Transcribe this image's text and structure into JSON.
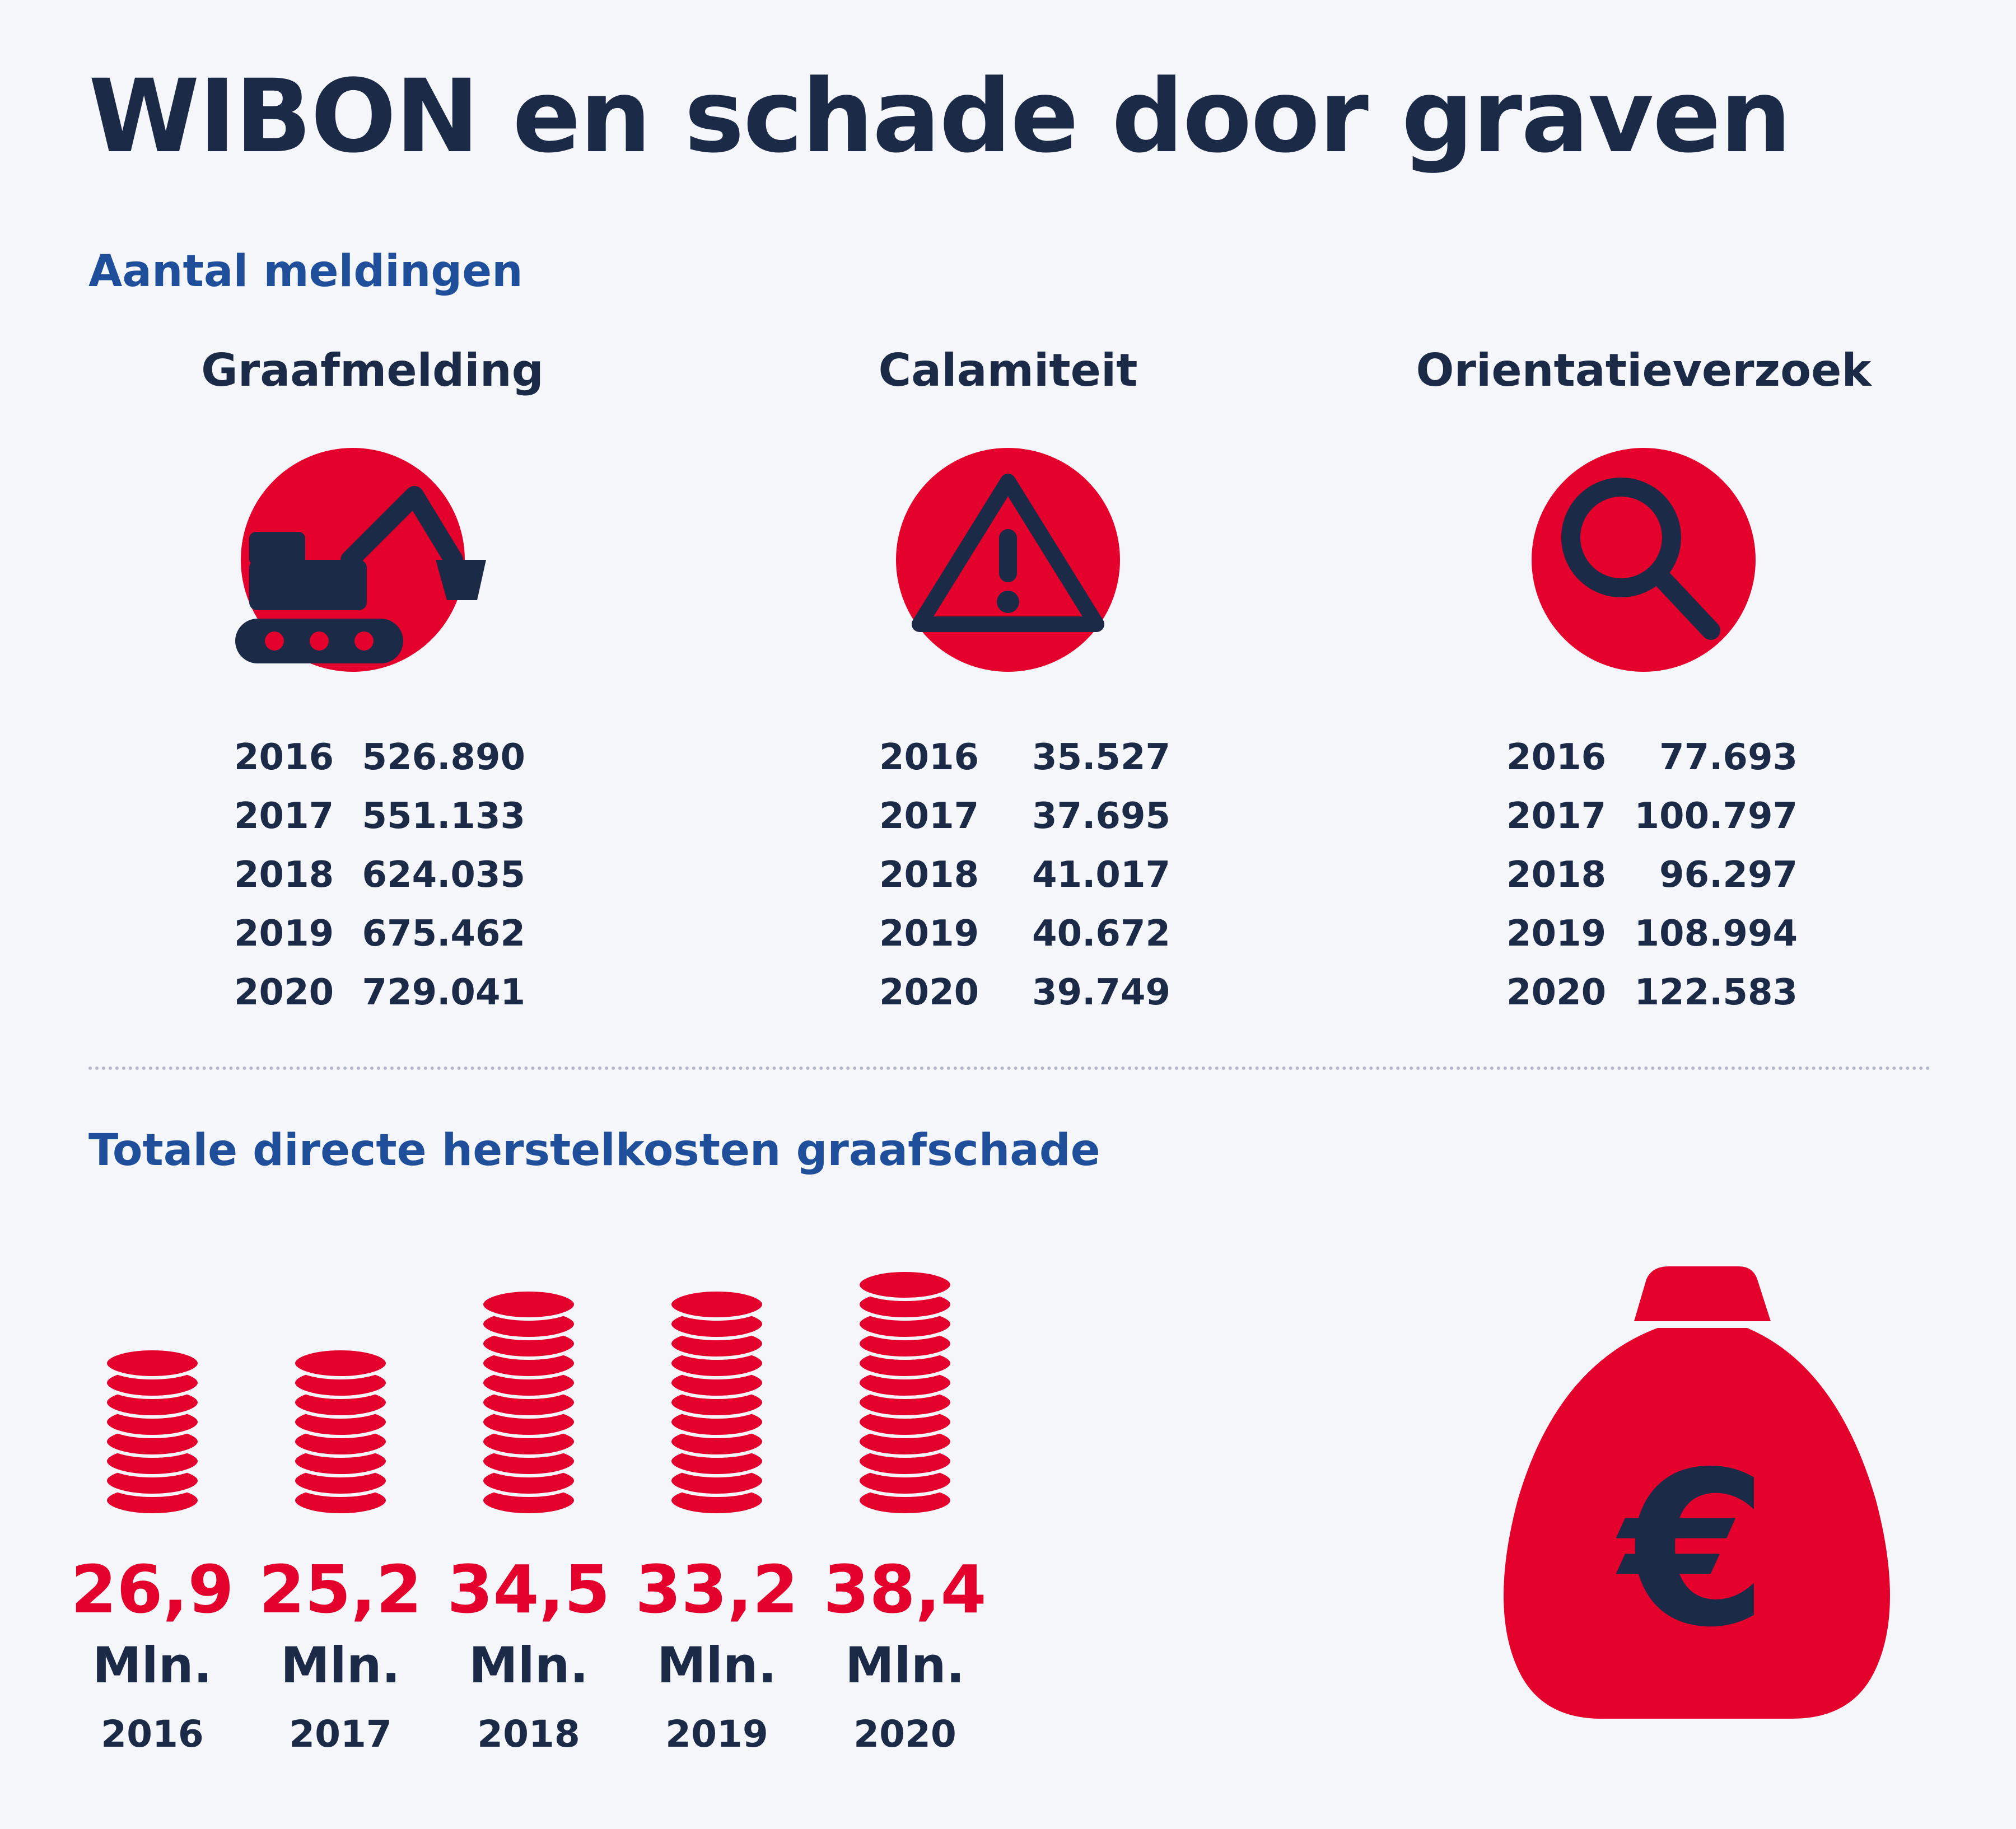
{
  "title": "WIBON en schade door graven",
  "sections": {
    "meldingen": "Aantal meldingen",
    "kosten": "Totale directe herstelkosten graafschade"
  },
  "columns": [
    {
      "title": "Graafmelding",
      "icon": "excavator-icon",
      "rows": [
        {
          "year": "2016",
          "value": "526.890"
        },
        {
          "year": "2017",
          "value": "551.133"
        },
        {
          "year": "2018",
          "value": "624.035"
        },
        {
          "year": "2019",
          "value": "675.462"
        },
        {
          "year": "2020",
          "value": "729.041"
        }
      ]
    },
    {
      "title": "Calamiteit",
      "icon": "warning-triangle-icon",
      "rows": [
        {
          "year": "2016",
          "value": "35.527"
        },
        {
          "year": "2017",
          "value": "37.695"
        },
        {
          "year": "2018",
          "value": "41.017"
        },
        {
          "year": "2019",
          "value": "40.672"
        },
        {
          "year": "2020",
          "value": "39.749"
        }
      ]
    },
    {
      "title": "Orientatieverzoek",
      "icon": "magnifier-icon",
      "rows": [
        {
          "year": "2016",
          "value": "77.693"
        },
        {
          "year": "2017",
          "value": "100.797"
        },
        {
          "year": "2018",
          "value": "96.297"
        },
        {
          "year": "2019",
          "value": "108.994"
        },
        {
          "year": "2020",
          "value": "122.583"
        }
      ]
    }
  ],
  "colors": {
    "accent": "#e4022d",
    "navy": "#1b2a47",
    "heading_blue": "#1f4f9a",
    "background": "#f5f6fa"
  },
  "chart_data": {
    "type": "bar",
    "categories": [
      "2016",
      "2017",
      "2018",
      "2019",
      "2020"
    ],
    "values": [
      26.9,
      25.2,
      34.5,
      33.2,
      38.4
    ],
    "value_labels": [
      "26,9",
      "25,2",
      "34,5",
      "33,2",
      "38,4"
    ],
    "unit": "Mln.",
    "title": "Totale directe herstelkosten graafschade",
    "coin_counts": [
      8,
      8,
      11,
      11,
      12
    ]
  },
  "money_bag": {
    "icon": "money-bag-icon",
    "symbol": "€"
  }
}
